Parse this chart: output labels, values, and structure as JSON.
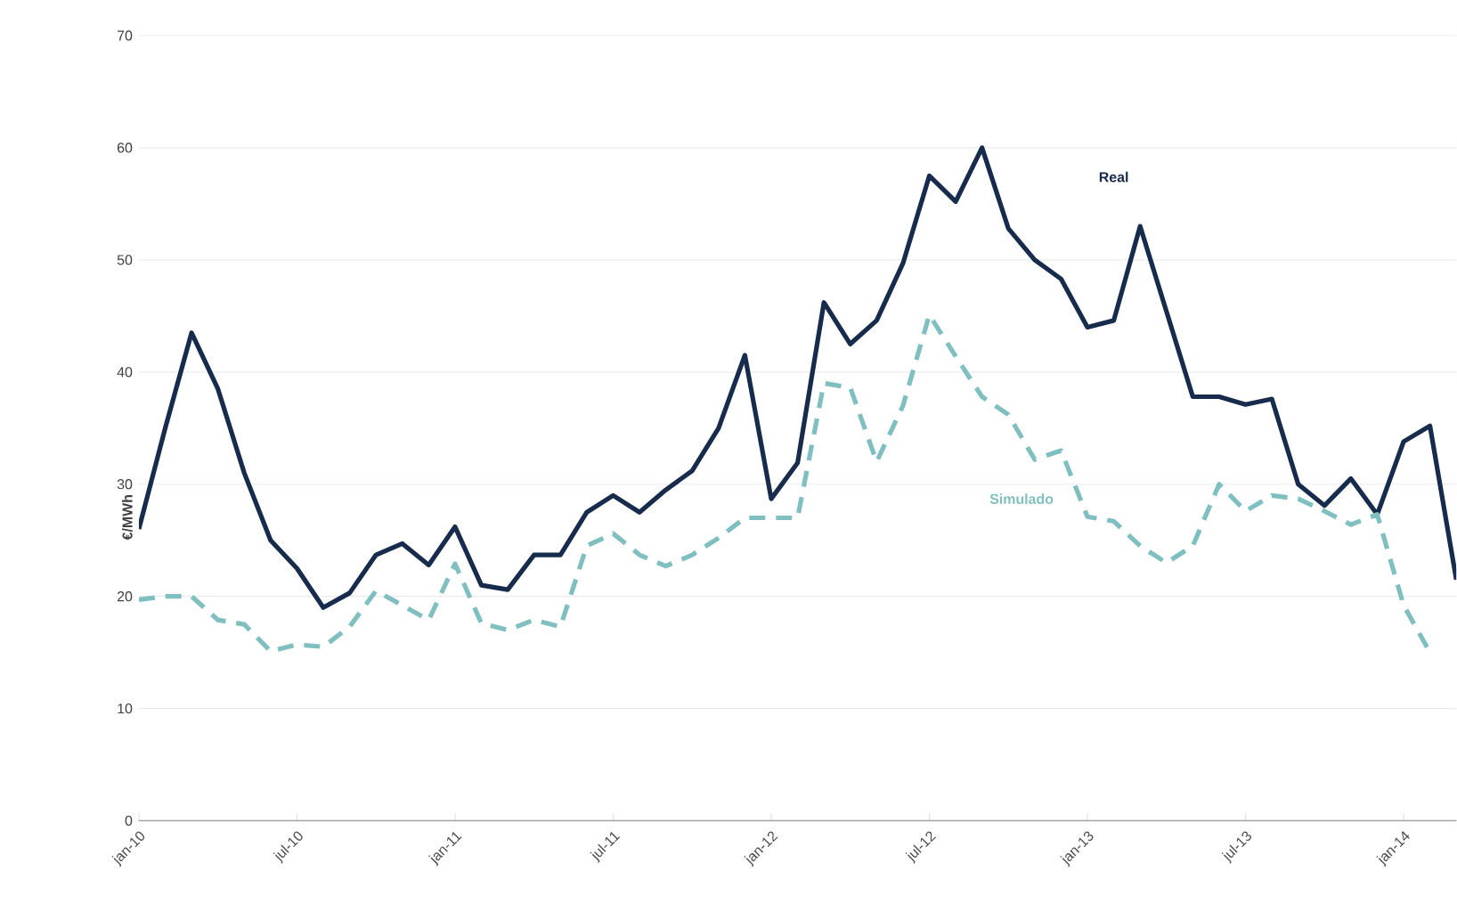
{
  "chart_data": {
    "type": "line",
    "ylabel": "€/MWh",
    "x": [
      "2010-01",
      "2010-02",
      "2010-03",
      "2010-04",
      "2010-05",
      "2010-06",
      "2010-07",
      "2010-08",
      "2010-09",
      "2010-10",
      "2010-11",
      "2010-12",
      "2011-01",
      "2011-02",
      "2011-03",
      "2011-04",
      "2011-05",
      "2011-06",
      "2011-07",
      "2011-08",
      "2011-09",
      "2011-10",
      "2011-11",
      "2011-12",
      "2012-01",
      "2012-02",
      "2012-03",
      "2012-04",
      "2012-05",
      "2012-06",
      "2012-07",
      "2012-08",
      "2012-09",
      "2012-10",
      "2012-11",
      "2012-12",
      "2013-01",
      "2013-02",
      "2013-03",
      "2013-04",
      "2013-05",
      "2013-06",
      "2013-07",
      "2013-08",
      "2013-09",
      "2013-10",
      "2013-11",
      "2013-12",
      "2014-01",
      "2014-02",
      "2014-03"
    ],
    "series": [
      {
        "name": "Real",
        "color": "#172b4d",
        "line_style": "solid",
        "values": [
          26,
          35,
          43.5,
          38.5,
          31,
          25,
          22.5,
          19,
          20.3,
          23.7,
          24.7,
          22.8,
          26.2,
          21,
          20.6,
          23.7,
          23.7,
          27.5,
          29,
          27.5,
          29.5,
          31.2,
          35,
          41.5,
          28.7,
          31.9,
          46.2,
          42.5,
          44.6,
          49.7,
          57.5,
          55.2,
          60,
          52.8,
          50,
          48.3,
          44,
          44.6,
          53,
          45.4,
          37.8,
          37.8,
          37.1,
          37.6,
          30,
          28.1,
          30.5,
          27.3,
          33.8,
          35.2,
          21.5
        ]
      },
      {
        "name": "Simulado",
        "color": "#7fbfc0",
        "line_style": "dashed",
        "values": [
          19.7,
          20,
          20,
          17.9,
          17.5,
          15.1,
          15.7,
          15.5,
          17.3,
          20.5,
          19.2,
          17.9,
          22.9,
          17.6,
          17,
          17.9,
          17.3,
          24.5,
          25.6,
          23.7,
          22.7,
          23.7,
          25.2,
          27,
          27,
          27,
          39,
          38.6,
          32,
          37,
          45.1,
          41.4,
          37.8,
          36.2,
          32.2,
          33,
          27.1,
          26.7,
          24.5,
          23,
          24.5,
          30,
          27.6,
          29,
          28.7,
          27.6,
          26.4,
          27.3,
          19.2,
          15,
          null
        ]
      }
    ],
    "xlim": [
      "2010-01",
      "2014-03"
    ],
    "xticks": [
      {
        "value": "2010-01",
        "label": "jan-10"
      },
      {
        "value": "2010-07",
        "label": "jul-10"
      },
      {
        "value": "2011-01",
        "label": "jan-11"
      },
      {
        "value": "2011-07",
        "label": "jul-11"
      },
      {
        "value": "2012-01",
        "label": "jan-12"
      },
      {
        "value": "2012-07",
        "label": "jul-12"
      },
      {
        "value": "2013-01",
        "label": "jan-13"
      },
      {
        "value": "2013-07",
        "label": "jul-13"
      },
      {
        "value": "2014-01",
        "label": "jan-14"
      }
    ],
    "ylim": [
      0,
      70
    ],
    "yticks": [
      0,
      10,
      20,
      30,
      40,
      50,
      60,
      70
    ],
    "grid": "y",
    "legend": false,
    "marker": "none"
  }
}
